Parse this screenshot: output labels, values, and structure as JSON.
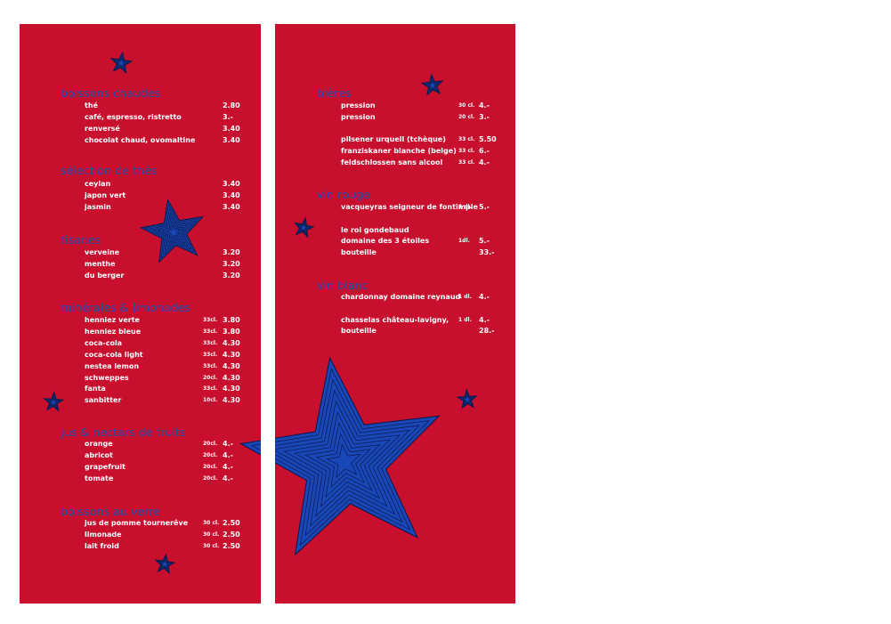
{
  "left_panel": {
    "sections": [
      {
        "title": "boissons chaudes",
        "items": [
          {
            "name": "thé",
            "qty": "",
            "price": "2.80"
          },
          {
            "name": "café, espresso, ristretto",
            "qty": "",
            "price": "3.-"
          },
          {
            "name": "renversé",
            "qty": "",
            "price": "3.40"
          },
          {
            "name": "chocolat chaud, ovomaltine",
            "qty": "",
            "price": "3.40"
          }
        ]
      },
      {
        "title": "sélection de thés",
        "items": [
          {
            "name": "ceylan",
            "qty": "",
            "price": "3.40"
          },
          {
            "name": "japon vert",
            "qty": "",
            "price": "3.40"
          },
          {
            "name": "jasmin",
            "qty": "",
            "price": "3.40"
          }
        ]
      },
      {
        "title": "tisanes",
        "items": [
          {
            "name": "verveine",
            "qty": "",
            "price": "3.20"
          },
          {
            "name": "menthe",
            "qty": "",
            "price": "3.20"
          },
          {
            "name": "du berger",
            "qty": "",
            "price": "3.20"
          }
        ]
      },
      {
        "title": "minérales & limonades",
        "items": [
          {
            "name": "henniez verte",
            "qty": "33cl.",
            "price": "3.80"
          },
          {
            "name": "henniez bleue",
            "qty": "33cl.",
            "price": "3.80"
          },
          {
            "name": "coca-cola",
            "qty": "33cl.",
            "price": "4.30"
          },
          {
            "name": "coca-cola light",
            "qty": "33cl.",
            "price": "4.30"
          },
          {
            "name": "nestea lemon",
            "qty": "33cl.",
            "price": "4.30"
          },
          {
            "name": "schweppes",
            "qty": "20cl.",
            "price": "4.30"
          },
          {
            "name": "fanta",
            "qty": "33cl.",
            "price": "4.30"
          },
          {
            "name": "sanbitter",
            "qty": "10cl.",
            "price": "4.30"
          }
        ]
      },
      {
        "title": "jus  & nectars de fruits",
        "items": [
          {
            "name": "orange",
            "qty": "20cl.",
            "price": "4.-"
          },
          {
            "name": "abricot",
            "qty": "20cl.",
            "price": "4.-"
          },
          {
            "name": "grapefruit",
            "qty": "20cl.",
            "price": "4.-"
          },
          {
            "name": "tomate",
            "qty": "20cl.",
            "price": "4.-"
          }
        ]
      },
      {
        "title": "boissons au verre",
        "items": [
          {
            "name": "jus de pomme tournerêve",
            "qty": "30 cl.",
            "price": "2.50"
          },
          {
            "name": "limonade",
            "qty": "30 cl.",
            "price": "2.50"
          },
          {
            "name": "lait froid",
            "qty": "30 cl.",
            "price": "2.50"
          }
        ]
      }
    ]
  },
  "right_panel": {
    "sections": [
      {
        "title": "bières",
        "items": [
          {
            "name": "pression",
            "qty": "30 cl.",
            "price": "4.-"
          },
          {
            "name": "pression",
            "qty": "20 cl.",
            "price": "3.-"
          },
          {
            "name": "",
            "qty": "",
            "price": ""
          },
          {
            "name": "pilsener urquell (tchèque)",
            "qty": "33 cl.",
            "price": "5.50"
          },
          {
            "name": "franziskaner blanche (belge)",
            "qty": "33 cl.",
            "price": "6.-"
          },
          {
            "name": "feldschlossen sans alcool",
            "qty": "33 cl.",
            "price": "4.-"
          }
        ]
      },
      {
        "title": "vin rouge",
        "items": [
          {
            "name": "vacqueyras seigneur de fontimple",
            "qty": "1 dl.",
            "price": "5.-"
          },
          {
            "name": "",
            "qty": "",
            "price": ""
          },
          {
            "name": "le roi gondebaud",
            "qty": "",
            "price": ""
          },
          {
            "name": "domaine des 3 étoiles",
            "qty": "1dl.",
            "price": "5.-"
          },
          {
            "name": "bouteille",
            "qty": "",
            "price": "33.-"
          }
        ]
      },
      {
        "title": "vin blanc",
        "items": [
          {
            "name": "chardonnay domaine reynaud",
            "qty": "1 dl.",
            "price": "4.-"
          },
          {
            "name": "",
            "qty": "",
            "price": ""
          },
          {
            "name": "chasselas château-lavigny,",
            "qty": "1 dl.",
            "price": "4.-"
          },
          {
            "name": "bouteille",
            "qty": "",
            "price": "28.-"
          }
        ]
      }
    ]
  },
  "colors": {
    "panel_red": "#c8102e",
    "title_blue": "#1d4fb0",
    "star_blue": "#1a47b8",
    "star_outline": "#0a1a4a",
    "text_white": "#ffffff"
  },
  "icons": [
    "star-icon"
  ]
}
